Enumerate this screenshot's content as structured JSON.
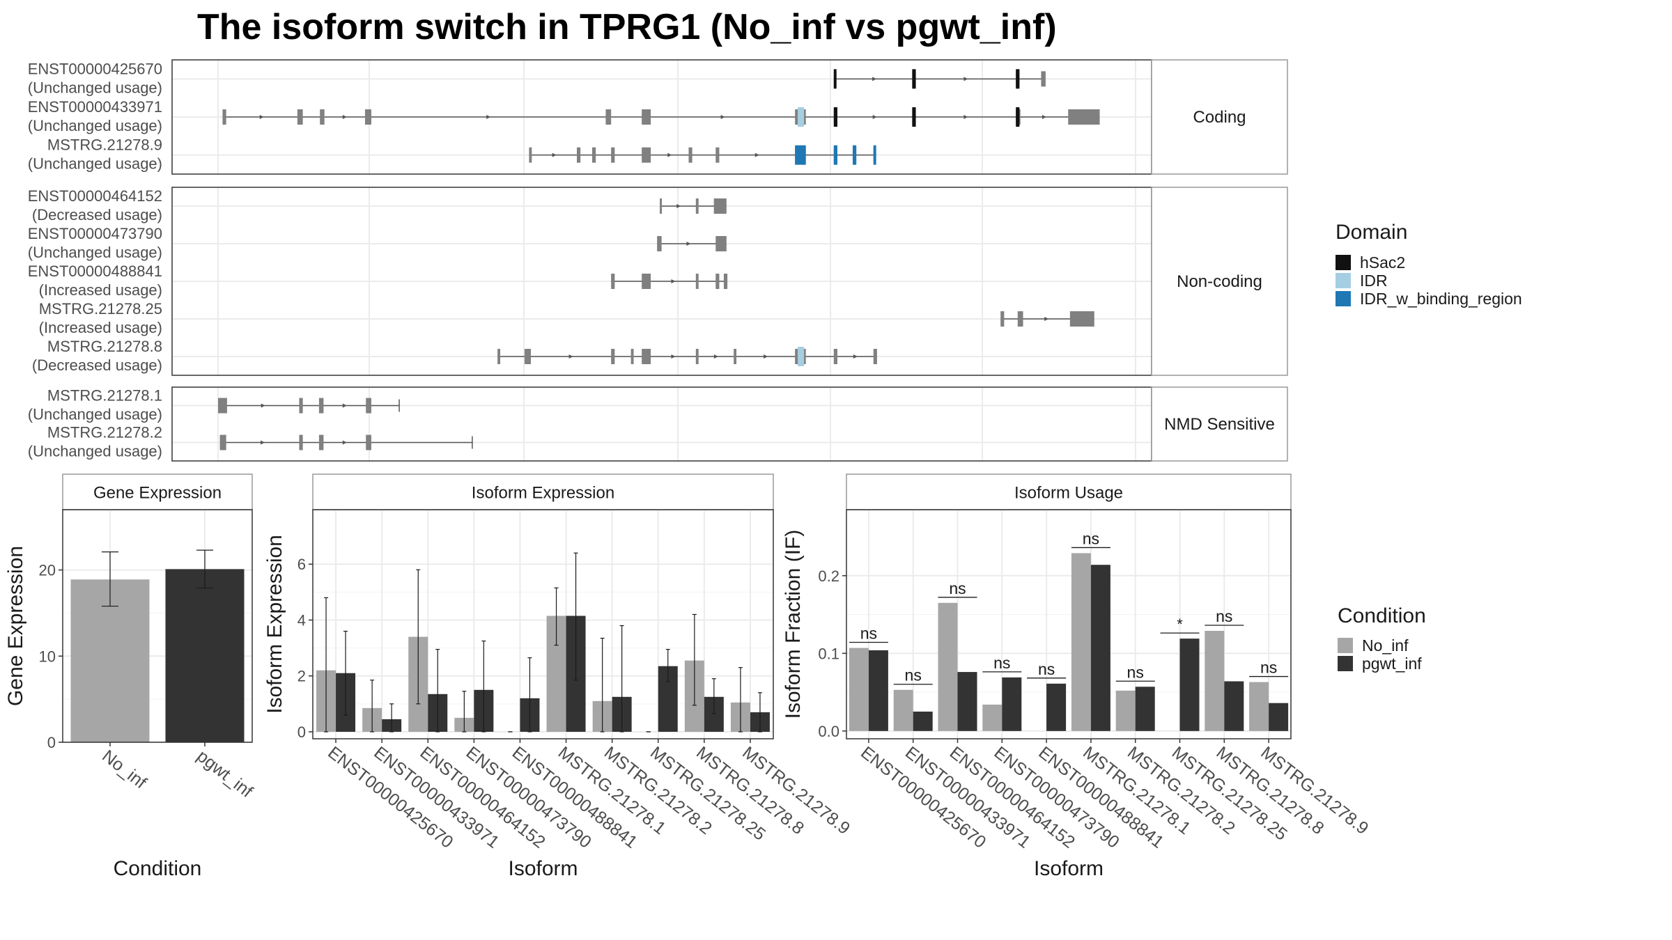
{
  "title": "The isoform switch in TPRG1 (No_inf vs pgwt_inf)",
  "colors": {
    "no_inf": "#a6a6a6",
    "pgwt_inf": "#333333",
    "hSac2": "#111111",
    "IDR": "#a6cee3",
    "IDR_w_binding_region": "#1f78b4",
    "exon": "#808080",
    "grid": "#ebebeb",
    "strip_border": "#999999"
  },
  "transcript_panels": [
    {
      "label": "Coding",
      "isoforms": [
        {
          "id": "ENST00000425670",
          "status": "(Unchanged usage)",
          "exons": [
            [
              0.683,
              0.686
            ],
            [
              0.77,
              0.774
            ],
            [
              0.885,
              0.889
            ],
            [
              0.913,
              0.918
            ]
          ],
          "domains": [
            {
              "domain": "hSac2",
              "ranges": [
                [
                  0.683,
                  0.686
                ],
                [
                  0.77,
                  0.774
                ],
                [
                  0.885,
                  0.889
                ]
              ]
            }
          ]
        },
        {
          "id": "ENST00000433971",
          "status": "(Unchanged usage)",
          "exons": [
            [
              0.005,
              0.009
            ],
            [
              0.088,
              0.094
            ],
            [
              0.113,
              0.118
            ],
            [
              0.163,
              0.17
            ],
            [
              0.43,
              0.436
            ],
            [
              0.47,
              0.48
            ],
            [
              0.64,
              0.652
            ],
            [
              0.683,
              0.687
            ],
            [
              0.77,
              0.774
            ],
            [
              0.885,
              0.89
            ],
            [
              0.943,
              0.978
            ]
          ],
          "domains": [
            {
              "domain": "IDR",
              "ranges": [
                [
                  0.643,
                  0.65
                ]
              ]
            },
            {
              "domain": "hSac2",
              "ranges": [
                [
                  0.683,
                  0.687
                ],
                [
                  0.77,
                  0.774
                ],
                [
                  0.885,
                  0.889
                ]
              ]
            }
          ]
        },
        {
          "id": "MSTRG.21278.9",
          "status": "(Unchanged usage)",
          "exons": [
            [
              0.345,
              0.348
            ],
            [
              0.398,
              0.402
            ],
            [
              0.415,
              0.419
            ],
            [
              0.436,
              0.44
            ],
            [
              0.47,
              0.48
            ],
            [
              0.522,
              0.526
            ],
            [
              0.552,
              0.556
            ],
            [
              0.64,
              0.652
            ],
            [
              0.683,
              0.687
            ],
            [
              0.704,
              0.708
            ],
            [
              0.727,
              0.73
            ]
          ],
          "domains": [
            {
              "domain": "IDR_w_binding_region",
              "ranges": [
                [
                  0.64,
                  0.652
                ],
                [
                  0.683,
                  0.687
                ],
                [
                  0.704,
                  0.708
                ],
                [
                  0.727,
                  0.73
                ]
              ]
            }
          ]
        }
      ]
    },
    {
      "label": "Non-coding",
      "isoforms": [
        {
          "id": "ENST00000464152",
          "status": "(Decreased usage)",
          "exons": [
            [
              0.49,
              0.492
            ],
            [
              0.53,
              0.533
            ],
            [
              0.55,
              0.564
            ]
          ],
          "domains": []
        },
        {
          "id": "ENST00000473790",
          "status": "(Unchanged usage)",
          "exons": [
            [
              0.487,
              0.492
            ],
            [
              0.552,
              0.564
            ]
          ],
          "domains": []
        },
        {
          "id": "ENST00000488841",
          "status": "(Increased usage)",
          "exons": [
            [
              0.436,
              0.44
            ],
            [
              0.47,
              0.48
            ],
            [
              0.53,
              0.533
            ],
            [
              0.552,
              0.556
            ],
            [
              0.561,
              0.565
            ]
          ],
          "domains": []
        },
        {
          "id": "MSTRG.21278.25",
          "status": "(Increased usage)",
          "exons": [
            [
              0.868,
              0.872
            ],
            [
              0.887,
              0.893
            ],
            [
              0.945,
              0.972
            ]
          ],
          "domains": []
        },
        {
          "id": "MSTRG.21278.8",
          "status": "(Decreased usage)",
          "exons": [
            [
              0.31,
              0.313
            ],
            [
              0.34,
              0.347
            ],
            [
              0.436,
              0.44
            ],
            [
              0.458,
              0.461
            ],
            [
              0.47,
              0.48
            ],
            [
              0.53,
              0.533
            ],
            [
              0.572,
              0.575
            ],
            [
              0.64,
              0.652
            ],
            [
              0.683,
              0.687
            ],
            [
              0.727,
              0.731
            ]
          ],
          "domains": [
            {
              "domain": "IDR",
              "ranges": [
                [
                  0.643,
                  0.65
                ]
              ]
            }
          ]
        }
      ]
    },
    {
      "label": "NMD Sensitive",
      "isoforms": [
        {
          "id": "MSTRG.21278.1",
          "status": "(Unchanged usage)",
          "exons": [
            [
              0.0,
              0.01
            ],
            [
              0.09,
              0.094
            ],
            [
              0.112,
              0.117
            ],
            [
              0.164,
              0.17
            ]
          ],
          "end": 0.201,
          "domains": []
        },
        {
          "id": "MSTRG.21278.2",
          "status": "(Unchanged usage)",
          "exons": [
            [
              0.002,
              0.009
            ],
            [
              0.09,
              0.094
            ],
            [
              0.112,
              0.117
            ],
            [
              0.164,
              0.17
            ]
          ],
          "end": 0.282,
          "domains": []
        }
      ]
    }
  ],
  "domain_legend": {
    "title": "Domain",
    "items": [
      {
        "label": "hSac2",
        "color": "#111111"
      },
      {
        "label": "IDR",
        "color": "#a6cee3"
      },
      {
        "label": "IDR_w_binding_region",
        "color": "#1f78b4"
      }
    ]
  },
  "condition_legend": {
    "title": "Condition",
    "items": [
      {
        "label": "No_inf",
        "color": "#a6a6a6"
      },
      {
        "label": "pgwt_inf",
        "color": "#333333"
      }
    ]
  },
  "chart_data": [
    {
      "type": "bar",
      "title": "Gene Expression",
      "xlabel": "Condition",
      "ylabel": "Gene Expression",
      "categories": [
        "No_inf",
        "pgwt_inf"
      ],
      "values": [
        18.9,
        20.1
      ],
      "errors": [
        [
          15.8,
          22.1
        ],
        [
          17.9,
          22.3
        ]
      ],
      "ylim": [
        0,
        27
      ],
      "yticks": [
        0,
        10,
        20
      ]
    },
    {
      "type": "bar",
      "title": "Isoform Expression",
      "xlabel": "Isoform",
      "ylabel": "Isoform Expression",
      "categories": [
        "ENST00000425670",
        "ENST00000433971",
        "ENST00000464152",
        "ENST00000473790",
        "ENST00000488841",
        "MSTRG.21278.1",
        "MSTRG.21278.2",
        "MSTRG.21278.25",
        "MSTRG.21278.8",
        "MSTRG.21278.9"
      ],
      "series": [
        {
          "name": "No_inf",
          "values": [
            2.2,
            0.85,
            3.4,
            0.5,
            0.0,
            4.15,
            1.1,
            0.0,
            2.55,
            1.05
          ],
          "errors": [
            [
              0.0,
              4.8
            ],
            [
              0.0,
              1.85
            ],
            [
              1.0,
              5.8
            ],
            [
              0.0,
              1.45
            ],
            [
              0.0,
              0.0
            ],
            [
              3.1,
              5.15
            ],
            [
              0.0,
              3.35
            ],
            [
              0.0,
              0.0
            ],
            [
              0.95,
              4.2
            ],
            [
              0.0,
              2.3
            ]
          ]
        },
        {
          "name": "pgwt_inf",
          "values": [
            2.1,
            0.45,
            1.35,
            1.5,
            1.2,
            4.15,
            1.25,
            2.35,
            1.25,
            0.7
          ],
          "errors": [
            [
              0.6,
              3.6
            ],
            [
              0.0,
              1.0
            ],
            [
              0.0,
              2.95
            ],
            [
              0.0,
              3.25
            ],
            [
              0.0,
              2.65
            ],
            [
              1.85,
              6.4
            ],
            [
              0.0,
              3.8
            ],
            [
              1.8,
              2.95
            ],
            [
              0.65,
              1.9
            ],
            [
              0.0,
              1.4
            ]
          ]
        }
      ],
      "ylim": [
        -0.25,
        7.95
      ],
      "yticks": [
        0,
        2,
        4,
        6
      ]
    },
    {
      "type": "bar",
      "title": "Isoform Usage",
      "xlabel": "Isoform",
      "ylabel": "Isoform Fraction (IF)",
      "categories": [
        "ENST00000425670",
        "ENST00000433971",
        "ENST00000464152",
        "ENST00000473790",
        "ENST00000488841",
        "MSTRG.21278.1",
        "MSTRG.21278.2",
        "MSTRG.21278.25",
        "MSTRG.21278.8",
        "MSTRG.21278.9"
      ],
      "series": [
        {
          "name": "No_inf",
          "values": [
            0.107,
            0.053,
            0.165,
            0.034,
            0.0,
            0.229,
            0.052,
            0.0,
            0.129,
            0.063
          ]
        },
        {
          "name": "pgwt_inf",
          "values": [
            0.104,
            0.025,
            0.076,
            0.069,
            0.061,
            0.214,
            0.057,
            0.119,
            0.064,
            0.036
          ]
        }
      ],
      "significance": [
        "ns",
        "ns",
        "ns",
        "ns",
        "ns",
        "ns",
        "ns",
        "*",
        "ns",
        "ns"
      ],
      "ylim": [
        -0.01,
        0.285
      ],
      "yticks": [
        0.0,
        0.1,
        0.2
      ]
    }
  ]
}
